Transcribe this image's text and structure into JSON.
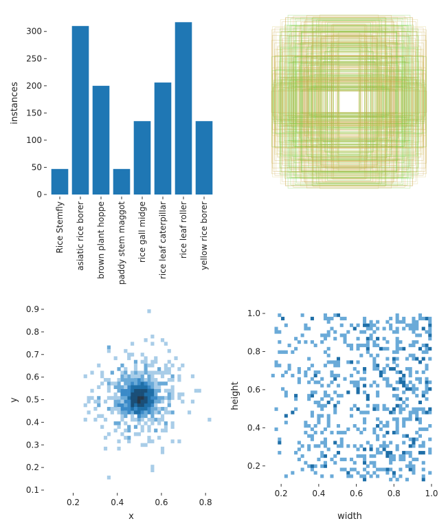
{
  "chart_data": [
    {
      "type": "bar",
      "categories": [
        "Rice Stemfly",
        "asiatic rice borer",
        "brown plant hoppe",
        "paddy stem maggot",
        "rice gall midge",
        "rice leaf caterpillar",
        "rice leaf roller",
        "yellow rice borer"
      ],
      "values": [
        47,
        310,
        200,
        47,
        135,
        206,
        317,
        135
      ],
      "ylabel": "instances",
      "ylim": [
        0,
        330
      ],
      "yticks": [
        0,
        50,
        100,
        150,
        200,
        250,
        300
      ],
      "color": "#1f77b4"
    },
    {
      "type": "scatter",
      "description_colors": [
        "#66cc33",
        "#c8a040",
        "#d8c86a"
      ],
      "note": ""
    },
    {
      "type": "heatmap",
      "xlabel": "x",
      "ylabel": "y",
      "xlim": [
        0.08,
        0.84
      ],
      "ylim": [
        0.1,
        0.9
      ],
      "xticks": [
        0.2,
        0.4,
        0.6,
        0.8
      ],
      "yticks": [
        0.1,
        0.2,
        0.3,
        0.4,
        0.5,
        0.6,
        0.7,
        0.8,
        0.9
      ],
      "center": [
        0.5,
        0.51
      ],
      "color": "#1f77b4"
    },
    {
      "type": "heatmap",
      "xlabel": "width",
      "ylabel": "height",
      "xlim": [
        0.13,
        1.0
      ],
      "ylim": [
        0.12,
        1.0
      ],
      "xticks": [
        0.2,
        0.4,
        0.6,
        0.8,
        1.0
      ],
      "yticks": [
        0.2,
        0.4,
        0.6,
        0.8,
        1.0
      ],
      "color": "#1f77b4"
    }
  ]
}
